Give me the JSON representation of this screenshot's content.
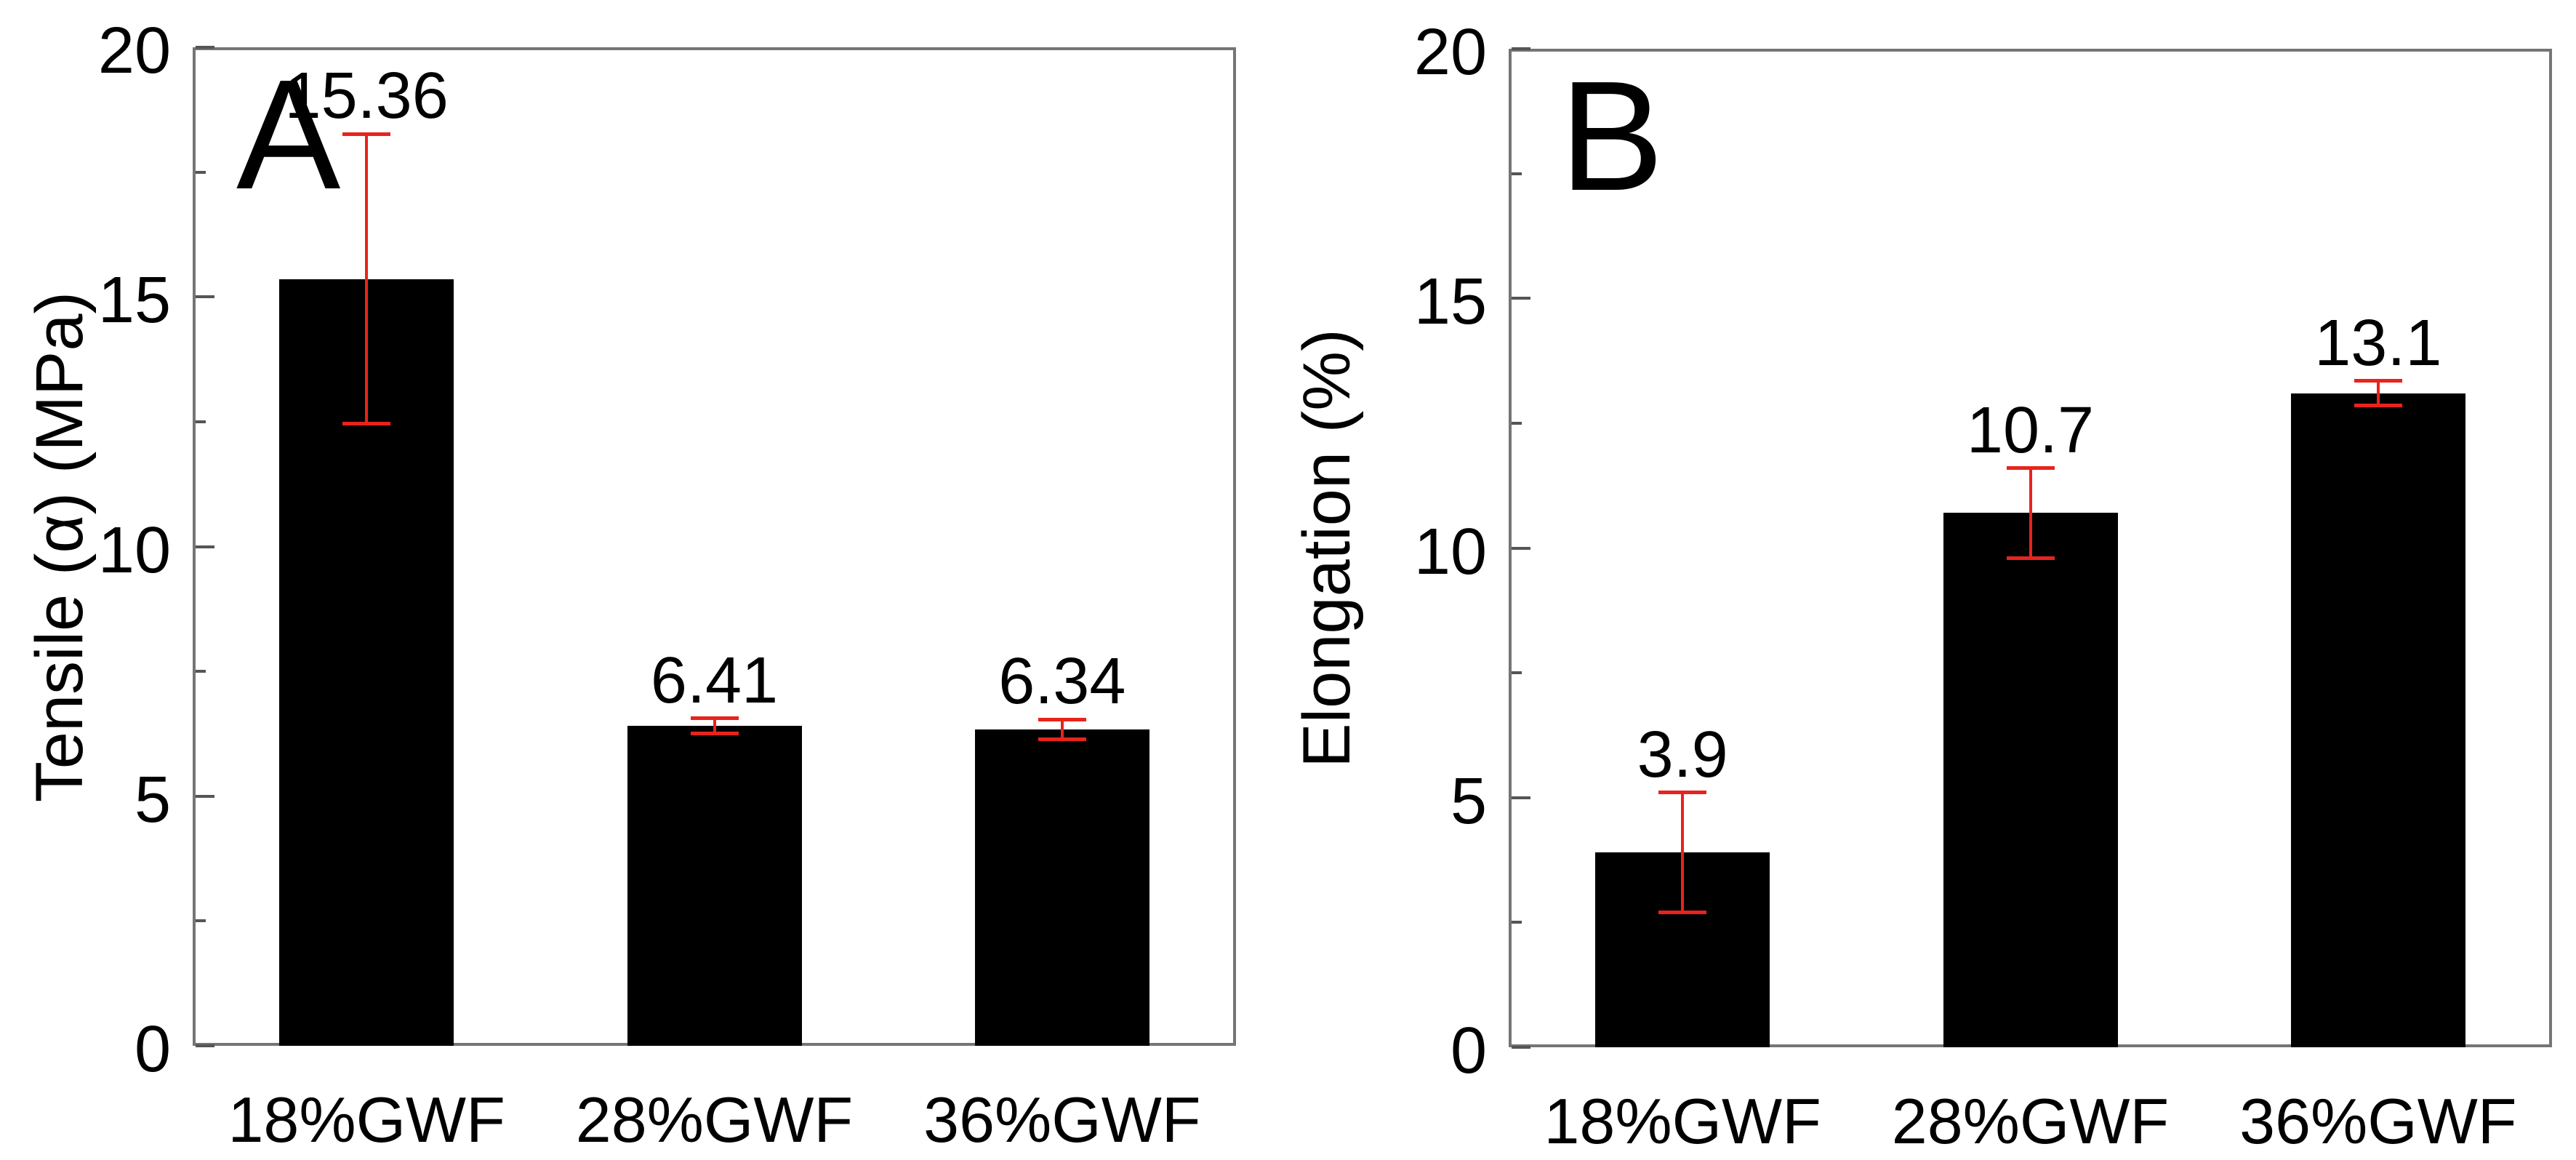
{
  "figure": {
    "background": "#ffffff",
    "bar_color": "#000000",
    "error_color": "#e8231d",
    "frame_color": "#757575"
  },
  "chart_data": [
    {
      "type": "bar",
      "panel_label": "A",
      "ylabel": "Tensile (α) (MPa)",
      "xlabel": "",
      "title": "",
      "categories": [
        "18%GWF",
        "28%GWF",
        "36%GWF"
      ],
      "values": [
        15.36,
        6.41,
        6.34
      ],
      "value_labels": [
        "15.36",
        "6.41",
        "6.34"
      ],
      "errors": [
        2.9,
        0.15,
        0.2
      ],
      "ylim": [
        0,
        20
      ],
      "yticks": [
        0,
        5,
        10,
        15,
        20
      ],
      "ytick_labels": [
        "0",
        "5",
        "10",
        "15",
        "20"
      ],
      "minor_yticks": [
        2.5,
        7.5,
        12.5,
        17.5
      ],
      "grid": false,
      "legend": null,
      "bar_color": "#000000",
      "error_color": "#e8231d"
    },
    {
      "type": "bar",
      "panel_label": "B",
      "ylabel": "Elongation (%)",
      "xlabel": "",
      "title": "",
      "categories": [
        "18%GWF",
        "28%GWF",
        "36%GWF"
      ],
      "values": [
        3.9,
        10.7,
        13.1
      ],
      "value_labels": [
        "3.9",
        "10.7",
        "13.1"
      ],
      "errors": [
        1.2,
        0.9,
        0.25
      ],
      "ylim": [
        0,
        20
      ],
      "yticks": [
        0,
        5,
        10,
        15,
        20
      ],
      "ytick_labels": [
        "0",
        "5",
        "10",
        "15",
        "20"
      ],
      "minor_yticks": [
        2.5,
        7.5,
        12.5,
        17.5
      ],
      "grid": false,
      "legend": null,
      "bar_color": "#000000",
      "error_color": "#e8231d"
    }
  ]
}
